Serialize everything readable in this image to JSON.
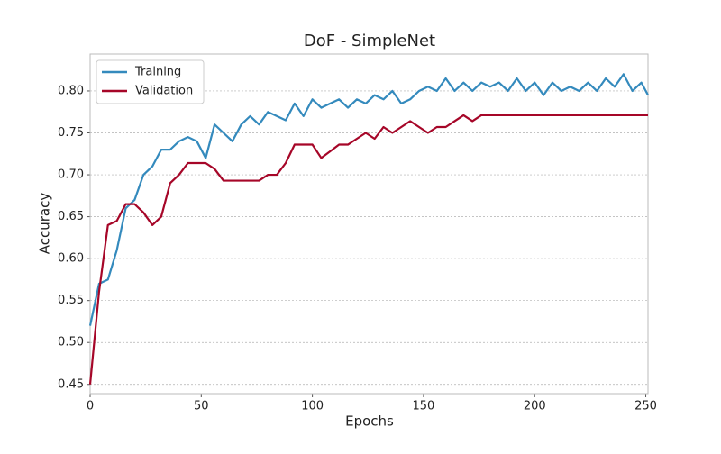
{
  "chart_data": {
    "type": "line",
    "title": "DoF - SimpleNet",
    "x_label": "Epochs",
    "y_label": "Accuracy",
    "x": [
      0,
      4,
      8,
      12,
      16,
      20,
      24,
      28,
      32,
      36,
      40,
      44,
      48,
      52,
      56,
      60,
      64,
      68,
      72,
      76,
      80,
      84,
      88,
      92,
      96,
      100,
      104,
      108,
      112,
      116,
      120,
      124,
      128,
      132,
      136,
      140,
      144,
      148,
      152,
      156,
      160,
      164,
      168,
      172,
      176,
      180,
      184,
      188,
      192,
      196,
      200,
      204,
      208,
      212,
      216,
      220,
      224,
      228,
      232,
      236,
      240,
      244,
      248,
      251
    ],
    "series": [
      {
        "name": "Training",
        "color": "#348abd",
        "values": [
          0.52,
          0.57,
          0.575,
          0.61,
          0.66,
          0.67,
          0.7,
          0.71,
          0.73,
          0.73,
          0.74,
          0.745,
          0.74,
          0.72,
          0.76,
          0.75,
          0.74,
          0.76,
          0.77,
          0.76,
          0.775,
          0.77,
          0.765,
          0.785,
          0.77,
          0.79,
          0.78,
          0.785,
          0.79,
          0.78,
          0.79,
          0.785,
          0.795,
          0.79,
          0.8,
          0.785,
          0.79,
          0.8,
          0.805,
          0.8,
          0.815,
          0.8,
          0.81,
          0.8,
          0.81,
          0.805,
          0.81,
          0.8,
          0.815,
          0.8,
          0.81,
          0.795,
          0.81,
          0.8,
          0.805,
          0.8,
          0.81,
          0.8,
          0.815,
          0.805,
          0.82,
          0.8,
          0.81,
          0.795
        ]
      },
      {
        "name": "Validation",
        "color": "#a60628",
        "values": [
          0.45,
          0.56,
          0.64,
          0.645,
          0.665,
          0.665,
          0.655,
          0.64,
          0.65,
          0.69,
          0.7,
          0.714,
          0.714,
          0.714,
          0.707,
          0.693,
          0.693,
          0.693,
          0.693,
          0.693,
          0.7,
          0.7,
          0.714,
          0.736,
          0.736,
          0.736,
          0.72,
          0.728,
          0.736,
          0.736,
          0.743,
          0.75,
          0.743,
          0.757,
          0.75,
          0.757,
          0.764,
          0.757,
          0.75,
          0.757,
          0.757,
          0.764,
          0.771,
          0.764,
          0.771,
          0.771,
          0.771,
          0.771,
          0.771,
          0.771,
          0.771,
          0.771,
          0.771,
          0.771,
          0.771,
          0.771,
          0.771,
          0.771,
          0.771,
          0.771,
          0.771,
          0.771,
          0.771,
          0.771
        ]
      }
    ],
    "xlim": [
      0,
      251
    ],
    "ylim": [
      0.439,
      0.844
    ],
    "xticks": [
      0,
      50,
      100,
      150,
      200,
      250
    ],
    "yticks": [
      {
        "value": 0.45,
        "label": "0.45"
      },
      {
        "value": 0.5,
        "label": "0.50"
      },
      {
        "value": 0.55,
        "label": "0.55"
      },
      {
        "value": 0.6,
        "label": "0.60"
      },
      {
        "value": 0.65,
        "label": "0.65"
      },
      {
        "value": 0.7,
        "label": "0.70"
      },
      {
        "value": 0.75,
        "label": "0.75"
      },
      {
        "value": 0.8,
        "label": "0.80"
      }
    ],
    "grid": true,
    "legend": "upper left"
  }
}
